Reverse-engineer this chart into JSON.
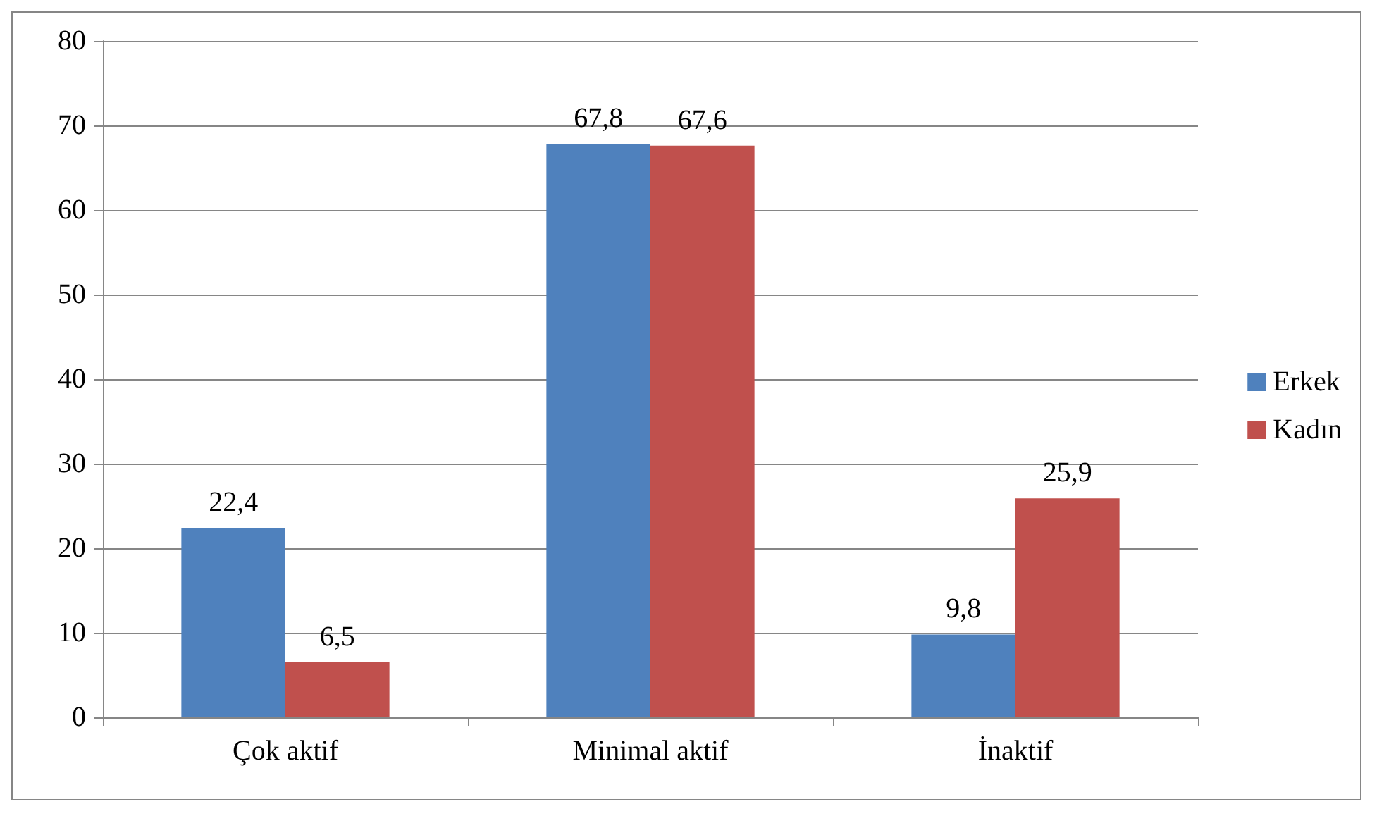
{
  "chart_data": {
    "type": "bar",
    "categories": [
      "Çok aktif",
      "Minimal aktif",
      "İnaktif"
    ],
    "series": [
      {
        "name": "Erkek",
        "color": "#4f81bd",
        "values": [
          22.4,
          67.8,
          9.8
        ],
        "value_labels": [
          "22,4",
          "67,8",
          "9,8"
        ]
      },
      {
        "name": "Kadın",
        "color": "#c0504d",
        "values": [
          6.5,
          67.6,
          25.9
        ],
        "value_labels": [
          "6,5",
          "67,6",
          "25,9"
        ]
      }
    ],
    "ylim": [
      0,
      80
    ],
    "yticks": [
      0,
      10,
      20,
      30,
      40,
      50,
      60,
      70,
      80
    ],
    "grid": "y",
    "legend": "right"
  }
}
